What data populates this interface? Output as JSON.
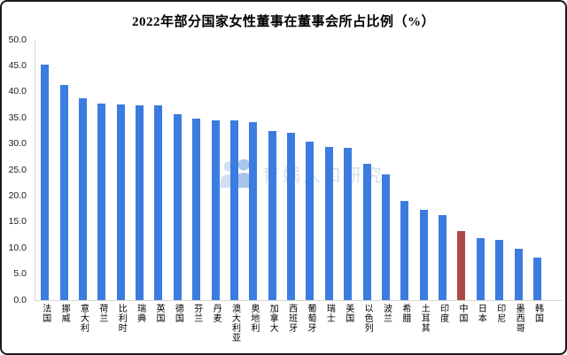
{
  "title": "2022年部分国家女性董事在董事会所占比例（%）",
  "watermark": {
    "text": "育娲人口研究",
    "icon": "people-logo-icon",
    "icon_color_light": "#cfe0f4",
    "icon_color_dark": "#a9c6e8"
  },
  "chart_data": {
    "type": "bar",
    "title": "2022年部分国家女性董事在董事会所占比例（%）",
    "categories": [
      "法国",
      "挪威",
      "意大利",
      "荷兰",
      "比利时",
      "瑞典",
      "英国",
      "德国",
      "芬兰",
      "丹麦",
      "澳大利亚",
      "奥地利",
      "加拿大",
      "西班牙",
      "葡萄牙",
      "瑞士",
      "美国",
      "以色列",
      "波兰",
      "希腊",
      "土耳其",
      "印度",
      "中国",
      "日本",
      "印尼",
      "墨西哥",
      "韩国"
    ],
    "values": [
      45.3,
      41.4,
      38.7,
      37.8,
      37.6,
      37.5,
      37.4,
      35.7,
      34.8,
      34.6,
      34.5,
      34.2,
      32.5,
      32.1,
      30.5,
      29.5,
      29.2,
      26.2,
      24.2,
      19.1,
      17.4,
      16.4,
      13.2,
      11.9,
      11.5,
      9.9,
      8.1
    ],
    "bar_color": "#3b7ce0",
    "highlight": {
      "category": "中国",
      "index": 22,
      "color": "#ae4a45"
    },
    "ylim": [
      0,
      50
    ],
    "ytick_step": 5,
    "yticks": [
      "50.0",
      "45.0",
      "40.0",
      "35.0",
      "30.0",
      "25.0",
      "20.0",
      "15.0",
      "10.0",
      "5.0",
      "0.0"
    ],
    "xlabel": "",
    "ylabel": "",
    "grid": false,
    "legend": false
  }
}
